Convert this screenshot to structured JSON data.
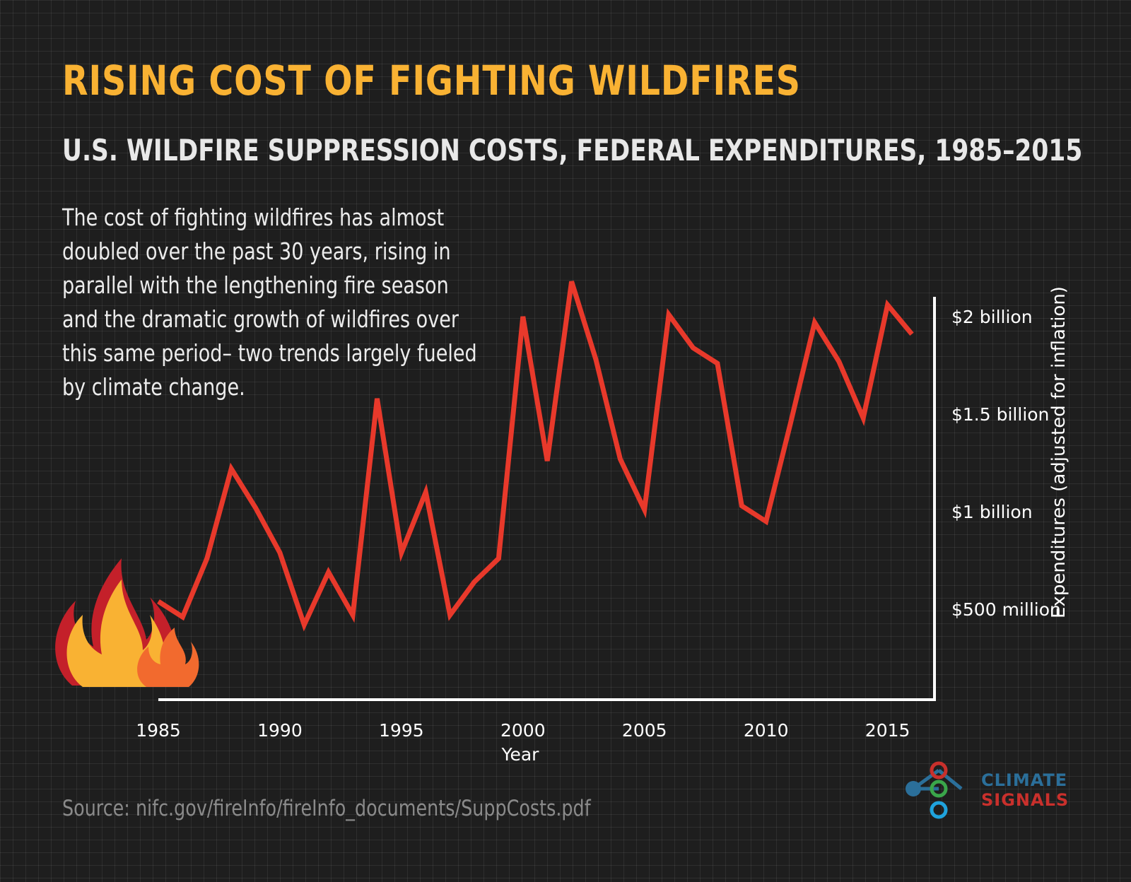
{
  "title": "RISING COST OF FIGHTING WILDFIRES",
  "subtitle": "U.S. WILDFIRE SUPPRESSION COSTS, FEDERAL EXPENDITURES, 1985–2015",
  "description": "The cost of fighting wildfires has almost doubled over the past 30 years, rising in parallel with the lengthening fire season and the dramatic growth of wildfires over this same period– two trends largely fueled by climate change.",
  "source": "Source: nifc.gov/fireInfo/fireInfo_documents/SuppCosts.pdf",
  "logo": {
    "line1": "CLIMATE",
    "line2": "SIGNALS"
  },
  "colors": {
    "line": "#e8392b",
    "title": "#f9b233",
    "axis": "#ffffff",
    "background": "#1e1e1e"
  },
  "chart_data": {
    "type": "line",
    "xlabel": "Year",
    "ylabel": "Expenditures (adjusted for inflation)",
    "x": [
      1985,
      1986,
      1987,
      1988,
      1989,
      1990,
      1991,
      1992,
      1993,
      1994,
      1995,
      1996,
      1997,
      1998,
      1999,
      2000,
      2001,
      2002,
      2003,
      2004,
      2005,
      2006,
      2007,
      2008,
      2009,
      2010,
      2011,
      2012,
      2013,
      2014,
      2015,
      2016
    ],
    "values": [
      540,
      460,
      760,
      1220,
      1020,
      790,
      420,
      690,
      470,
      1580,
      790,
      1100,
      470,
      640,
      760,
      2000,
      1260,
      2180,
      1780,
      1270,
      1010,
      2010,
      1840,
      1760,
      1030,
      950,
      1450,
      1970,
      1770,
      1480,
      2060,
      1910
    ],
    "value_unit": "millions of dollars",
    "y_ticks": [
      {
        "value": 500,
        "label": "$500 million"
      },
      {
        "value": 1000,
        "label": "$1 billion"
      },
      {
        "value": 1500,
        "label": "$1.5 billion"
      },
      {
        "value": 2000,
        "label": "$2 billion"
      }
    ],
    "x_ticks": [
      {
        "value": 1985,
        "label": "1985"
      },
      {
        "value": 1990,
        "label": "1990"
      },
      {
        "value": 1995,
        "label": "1995"
      },
      {
        "value": 2000,
        "label": "2000"
      },
      {
        "value": 2005,
        "label": "2005"
      },
      {
        "value": 2010,
        "label": "2010"
      },
      {
        "value": 2015,
        "label": "2015"
      }
    ],
    "xlim": [
      1985,
      2017
    ],
    "ylim": [
      0,
      2150
    ],
    "y_axis_side": "right",
    "grid": true
  }
}
